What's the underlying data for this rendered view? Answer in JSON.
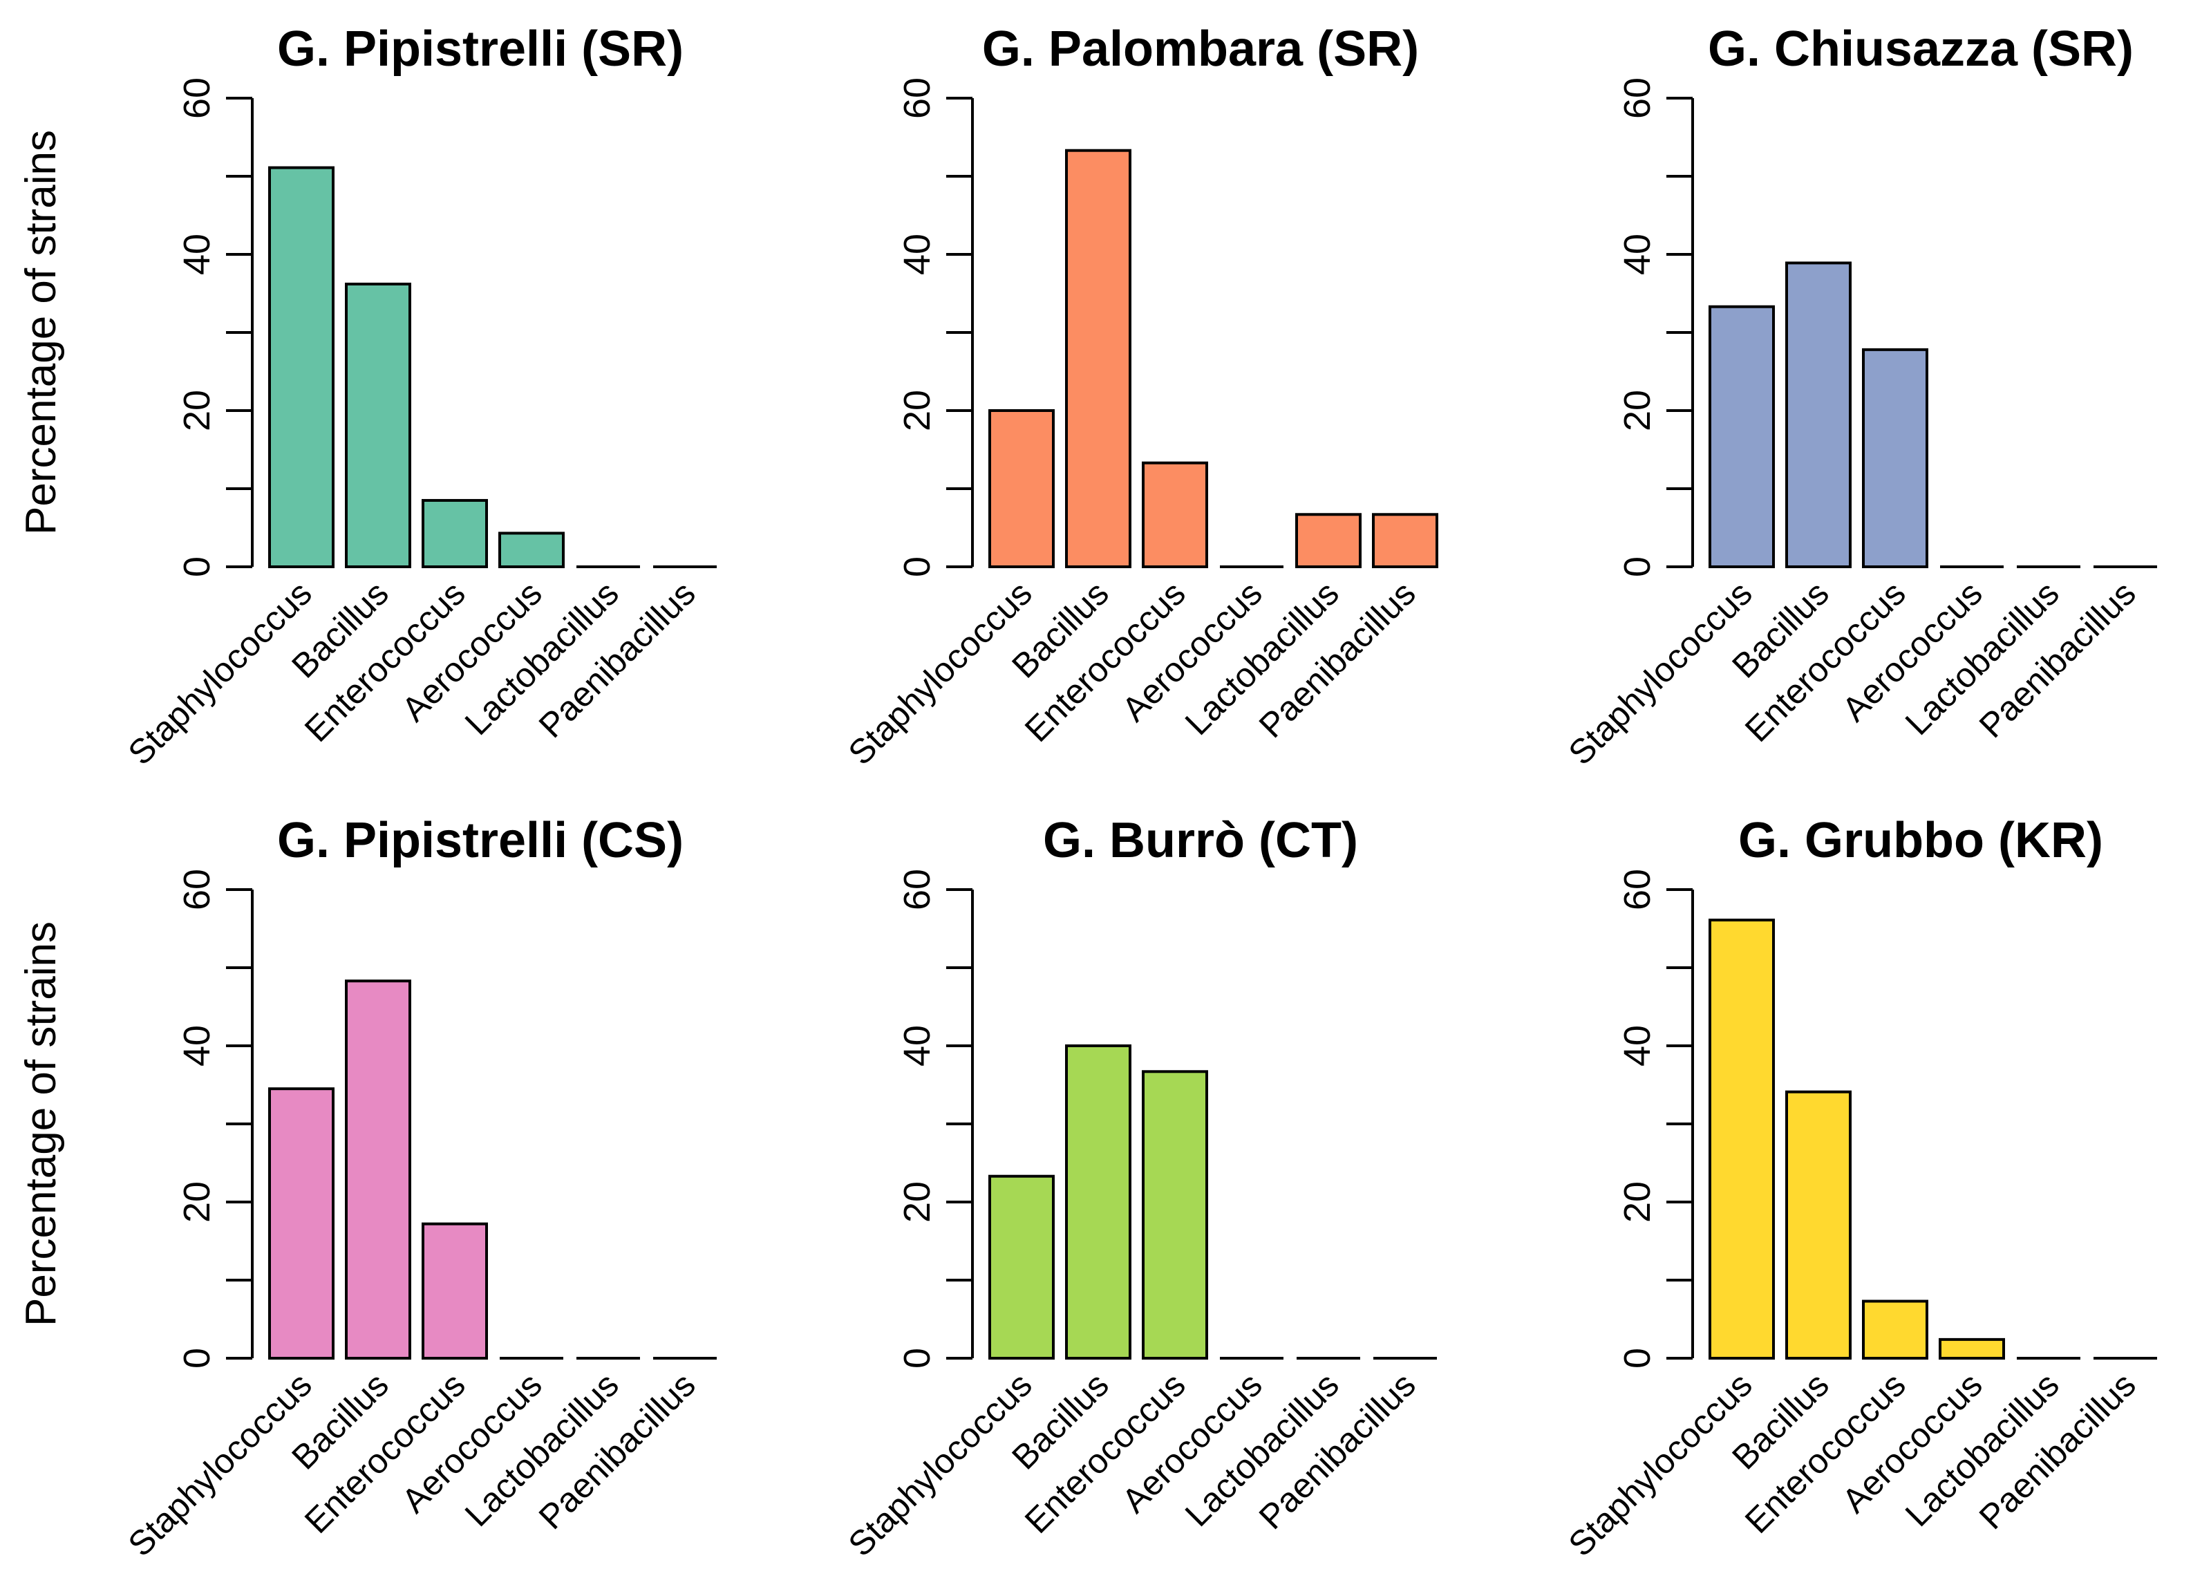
{
  "chart_data": [
    {
      "type": "bar",
      "title": "G. Pipistrelli (SR)",
      "ylabel": "Percentage of strains",
      "ylim": [
        0,
        60
      ],
      "yticks": [
        0,
        20,
        40,
        60
      ],
      "color": "#66c2a5",
      "categories": [
        "Staphylococcus",
        "Bacillus",
        "Enterococcus",
        "Aerococcus",
        "Lactobacillus",
        "Paenibacillus"
      ],
      "values": [
        51.1,
        36.2,
        8.5,
        4.3,
        0,
        0
      ]
    },
    {
      "type": "bar",
      "title": "G. Palombara (SR)",
      "ylabel": "",
      "ylim": [
        0,
        60
      ],
      "yticks": [
        0,
        20,
        40,
        60
      ],
      "color": "#fc8d62",
      "categories": [
        "Staphylococcus",
        "Bacillus",
        "Enterococcus",
        "Aerococcus",
        "Lactobacillus",
        "Paenibacillus"
      ],
      "values": [
        20.0,
        53.3,
        13.3,
        0,
        6.7,
        6.7
      ]
    },
    {
      "type": "bar",
      "title": "G. Chiusazza (SR)",
      "ylabel": "",
      "ylim": [
        0,
        60
      ],
      "yticks": [
        0,
        20,
        40,
        60
      ],
      "color": "#8da0cb",
      "categories": [
        "Staphylococcus",
        "Bacillus",
        "Enterococcus",
        "Aerococcus",
        "Lactobacillus",
        "Paenibacillus"
      ],
      "values": [
        33.3,
        38.9,
        27.8,
        0,
        0,
        0
      ]
    },
    {
      "type": "bar",
      "title": "G. Pipistrelli (CS)",
      "ylabel": "Percentage of strains",
      "ylim": [
        0,
        60
      ],
      "yticks": [
        0,
        20,
        40,
        60
      ],
      "color": "#e78ac3",
      "categories": [
        "Staphylococcus",
        "Bacillus",
        "Enterococcus",
        "Aerococcus",
        "Lactobacillus",
        "Paenibacillus"
      ],
      "values": [
        34.5,
        48.3,
        17.2,
        0,
        0,
        0
      ]
    },
    {
      "type": "bar",
      "title": "G. Burrò (CT)",
      "ylabel": "",
      "ylim": [
        0,
        60
      ],
      "yticks": [
        0,
        20,
        40,
        60
      ],
      "color": "#a6d854",
      "categories": [
        "Staphylococcus",
        "Bacillus",
        "Enterococcus",
        "Aerococcus",
        "Lactobacillus",
        "Paenibacillus"
      ],
      "values": [
        23.3,
        40.0,
        36.7,
        0,
        0,
        0
      ]
    },
    {
      "type": "bar",
      "title": "G. Grubbo (KR)",
      "ylabel": "",
      "ylim": [
        0,
        60
      ],
      "yticks": [
        0,
        20,
        40,
        60
      ],
      "color": "#ffd92f",
      "categories": [
        "Staphylococcus",
        "Bacillus",
        "Enterococcus",
        "Aerococcus",
        "Lactobacillus",
        "Paenibacillus"
      ],
      "values": [
        56.1,
        34.1,
        7.3,
        2.4,
        0,
        0
      ]
    }
  ]
}
